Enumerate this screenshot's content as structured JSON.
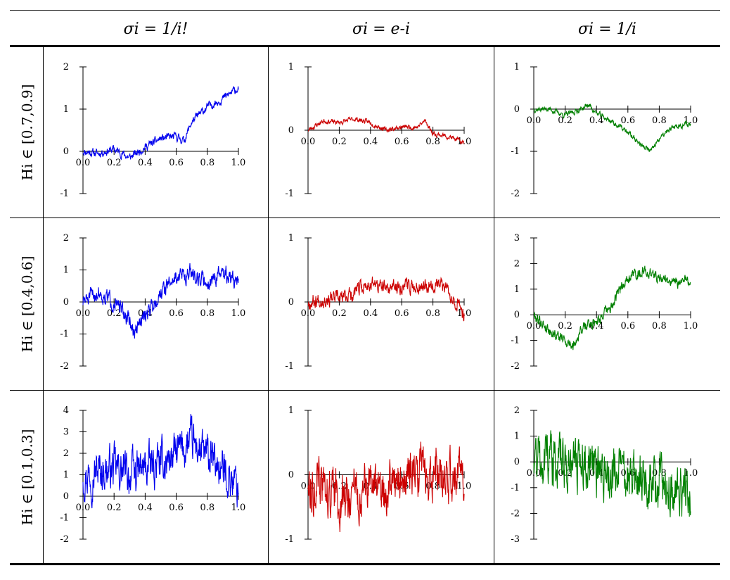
{
  "column_headers": [
    "σi = 1/i!",
    "σi = e-i",
    "σi = 1/i"
  ],
  "row_headers": [
    "Hi ∈ [0.7,0.9]",
    "Hi ∈ [0.4,0.6]",
    "Hi ∈ [0.1,0.3]"
  ],
  "colors": {
    "blue": "#0000ee",
    "red": "#cc0000",
    "green": "#008000"
  },
  "chart_data": [
    {
      "type": "line",
      "row": 0,
      "col": 0,
      "color": "#0000ee",
      "seed": 11,
      "rough": 0.15,
      "xlim": [
        0,
        1
      ],
      "ylim": [
        -1,
        2
      ],
      "yticks": [
        -1,
        0,
        1,
        2
      ],
      "xticks": [
        "0.0",
        "0.2",
        "0.4",
        "0.6",
        "0.8",
        "1.0"
      ],
      "series": [
        {
          "x": [
            0,
            0.1,
            0.2,
            0.3,
            0.4,
            0.5,
            0.6,
            0.65,
            0.7,
            0.8,
            0.9,
            1.0
          ],
          "values": [
            0,
            -0.05,
            0.05,
            -0.15,
            0.1,
            0.3,
            0.35,
            0.25,
            0.7,
            1.05,
            1.25,
            1.5
          ]
        }
      ]
    },
    {
      "type": "line",
      "row": 0,
      "col": 1,
      "color": "#cc0000",
      "seed": 23,
      "rough": 0.06,
      "xlim": [
        0,
        1
      ],
      "ylim": [
        -1,
        1
      ],
      "yticks": [
        -1,
        0,
        1
      ],
      "xticks": [
        "0.0",
        "0.2",
        "0.4",
        "0.6",
        "0.8",
        "1.0"
      ],
      "series": [
        {
          "x": [
            0,
            0.1,
            0.2,
            0.3,
            0.4,
            0.5,
            0.6,
            0.7,
            0.75,
            0.8,
            0.9,
            1.0
          ],
          "values": [
            0,
            0.15,
            0.12,
            0.18,
            0.12,
            0.0,
            0.05,
            0.05,
            0.15,
            -0.05,
            -0.1,
            -0.2
          ]
        }
      ]
    },
    {
      "type": "line",
      "row": 0,
      "col": 2,
      "color": "#008000",
      "seed": 37,
      "rough": 0.1,
      "xlim": [
        0,
        1
      ],
      "ylim": [
        -2,
        1
      ],
      "yticks": [
        -2,
        -1,
        0,
        1
      ],
      "xticks": [
        "0.0",
        "0.2",
        "0.4",
        "0.6",
        "0.8",
        "1.0"
      ],
      "series": [
        {
          "x": [
            0,
            0.1,
            0.2,
            0.3,
            0.35,
            0.4,
            0.5,
            0.6,
            0.7,
            0.75,
            0.8,
            0.9,
            1.0
          ],
          "values": [
            0,
            0.0,
            -0.15,
            0.0,
            0.1,
            -0.1,
            -0.3,
            -0.55,
            -0.9,
            -1.0,
            -0.7,
            -0.4,
            -0.35
          ]
        }
      ]
    },
    {
      "type": "line",
      "row": 1,
      "col": 0,
      "color": "#0000ee",
      "seed": 51,
      "rough": 0.4,
      "xlim": [
        0,
        1
      ],
      "ylim": [
        -2,
        2
      ],
      "yticks": [
        -2,
        -1,
        0,
        1,
        2
      ],
      "xticks": [
        "0.0",
        "0.2",
        "0.4",
        "0.6",
        "0.8",
        "1.0"
      ],
      "series": [
        {
          "x": [
            0,
            0.1,
            0.2,
            0.3,
            0.33,
            0.4,
            0.5,
            0.6,
            0.7,
            0.8,
            0.9,
            1.0
          ],
          "values": [
            0,
            0.3,
            0.0,
            -0.6,
            -1.0,
            -0.4,
            0.3,
            0.8,
            0.9,
            0.6,
            0.9,
            0.6
          ]
        }
      ]
    },
    {
      "type": "line",
      "row": 1,
      "col": 1,
      "color": "#cc0000",
      "seed": 67,
      "rough": 0.18,
      "xlim": [
        0,
        1
      ],
      "ylim": [
        -1,
        1
      ],
      "yticks": [
        -1,
        0,
        1
      ],
      "xticks": [
        "0.0",
        "0.2",
        "0.4",
        "0.6",
        "0.8",
        "1.0"
      ],
      "series": [
        {
          "x": [
            0,
            0.1,
            0.2,
            0.3,
            0.4,
            0.5,
            0.6,
            0.7,
            0.8,
            0.9,
            1.0
          ],
          "values": [
            0,
            0.05,
            0.05,
            0.15,
            0.3,
            0.2,
            0.25,
            0.25,
            0.3,
            0.2,
            -0.2
          ]
        }
      ]
    },
    {
      "type": "line",
      "row": 1,
      "col": 2,
      "color": "#008000",
      "seed": 79,
      "rough": 0.35,
      "xlim": [
        0,
        1
      ],
      "ylim": [
        -2,
        3
      ],
      "yticks": [
        -2,
        -1,
        0,
        1,
        2,
        3
      ],
      "xticks": [
        "0.0",
        "0.2",
        "0.4",
        "0.6",
        "0.8",
        "1.0"
      ],
      "series": [
        {
          "x": [
            0,
            0.1,
            0.2,
            0.25,
            0.3,
            0.4,
            0.5,
            0.55,
            0.6,
            0.7,
            0.8,
            0.9,
            1.0
          ],
          "values": [
            0,
            -0.6,
            -1.0,
            -1.2,
            -0.6,
            -0.2,
            0.3,
            1.0,
            1.5,
            1.7,
            1.5,
            1.2,
            1.4
          ]
        }
      ]
    },
    {
      "type": "line",
      "row": 2,
      "col": 0,
      "color": "#0000ee",
      "seed": 97,
      "rough": 1.5,
      "xlim": [
        0,
        1
      ],
      "ylim": [
        -2,
        4
      ],
      "yticks": [
        -2,
        -1,
        0,
        1,
        2,
        3,
        4
      ],
      "xticks": [
        "0.0",
        "0.2",
        "0.4",
        "0.6",
        "0.8",
        "1.0"
      ],
      "series": [
        {
          "x": [
            0,
            0.1,
            0.2,
            0.3,
            0.4,
            0.5,
            0.6,
            0.7,
            0.8,
            0.9,
            1.0
          ],
          "values": [
            1.0,
            1.2,
            1.3,
            1.0,
            1.3,
            1.5,
            2.0,
            2.5,
            1.8,
            1.2,
            0.5
          ]
        }
      ]
    },
    {
      "type": "line",
      "row": 2,
      "col": 1,
      "color": "#cc0000",
      "seed": 113,
      "rough": 0.6,
      "xlim": [
        0,
        1
      ],
      "ylim": [
        -1,
        1
      ],
      "yticks": [
        -1,
        0,
        1
      ],
      "xticks": [
        "0.0",
        "0.2",
        "0.4",
        "0.6",
        "0.8",
        "1.0"
      ],
      "series": [
        {
          "x": [
            0,
            0.1,
            0.2,
            0.3,
            0.4,
            0.5,
            0.6,
            0.7,
            0.8,
            0.9,
            1.0
          ],
          "values": [
            -0.1,
            -0.2,
            -0.35,
            -0.3,
            -0.2,
            -0.2,
            -0.1,
            0.05,
            0.0,
            -0.05,
            0.0
          ]
        }
      ]
    },
    {
      "type": "line",
      "row": 2,
      "col": 2,
      "color": "#008000",
      "seed": 131,
      "rough": 1.6,
      "xlim": [
        0,
        1
      ],
      "ylim": [
        -3,
        2
      ],
      "yticks": [
        -3,
        -2,
        -1,
        0,
        1,
        2
      ],
      "xticks": [
        "0.0",
        "0.2",
        "0.4",
        "0.6",
        "0.8",
        "1.0"
      ],
      "series": [
        {
          "x": [
            0,
            0.1,
            0.2,
            0.3,
            0.4,
            0.5,
            0.6,
            0.7,
            0.8,
            0.9,
            1.0
          ],
          "values": [
            0.3,
            0.2,
            -0.1,
            0.0,
            -0.2,
            -0.4,
            -0.7,
            -0.9,
            -0.8,
            -1.1,
            -1.3
          ]
        }
      ]
    }
  ]
}
